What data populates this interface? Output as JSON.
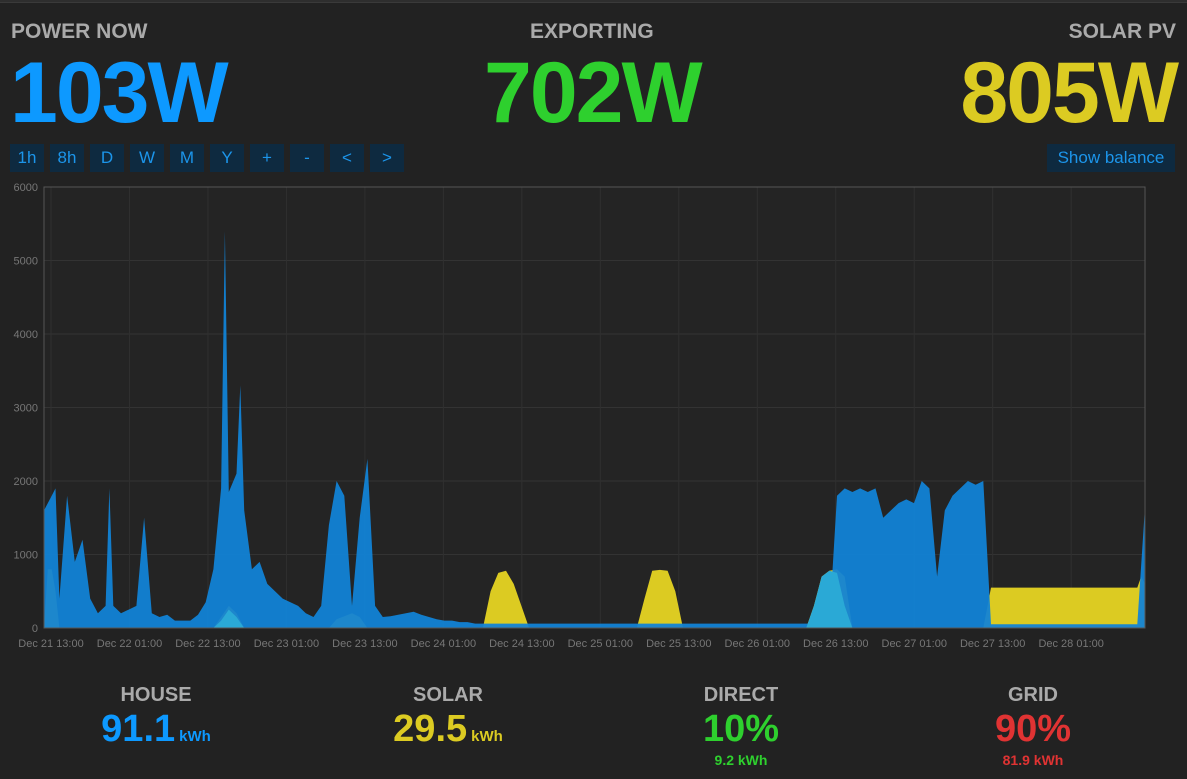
{
  "header": {
    "power_now": {
      "label": "POWER NOW",
      "value": "103W",
      "color": "#0d99ff"
    },
    "exporting": {
      "label": "EXPORTING",
      "value": "702W",
      "color": "#2ed02e"
    },
    "solar_pv": {
      "label": "SOLAR PV",
      "value": "805W",
      "color": "#dccb22"
    }
  },
  "toolbar": {
    "buttons": [
      "1h",
      "8h",
      "D",
      "W",
      "M",
      "Y",
      "+",
      "-",
      "<",
      ">"
    ],
    "show_balance": "Show balance"
  },
  "chart_data": {
    "type": "area",
    "y_ticks": [
      "0",
      "1000",
      "2000",
      "3000",
      "4000",
      "5000",
      "6000"
    ],
    "ylim": [
      0,
      6000
    ],
    "x_ticks": [
      "Dec 21 13:00",
      "Dec 22 01:00",
      "Dec 22 13:00",
      "Dec 23 01:00",
      "Dec 23 13:00",
      "Dec 24 01:00",
      "Dec 24 13:00",
      "Dec 25 01:00",
      "Dec 25 13:00",
      "Dec 26 01:00",
      "Dec 26 13:00",
      "Dec 27 01:00",
      "Dec 27 13:00",
      "Dec 28 01:00"
    ],
    "grid": true,
    "series_colors": {
      "house": "#1283d6",
      "solar": "#dccb22",
      "direct": "#2aa9d6"
    },
    "house": [
      [
        0,
        1600
      ],
      [
        1,
        1800
      ],
      [
        1.5,
        1900
      ],
      [
        2,
        400
      ],
      [
        3,
        1800
      ],
      [
        4,
        900
      ],
      [
        5,
        1200
      ],
      [
        6,
        400
      ],
      [
        7,
        200
      ],
      [
        8,
        300
      ],
      [
        8.5,
        1900
      ],
      [
        9,
        300
      ],
      [
        10,
        200
      ],
      [
        11,
        250
      ],
      [
        12,
        300
      ],
      [
        13,
        1500
      ],
      [
        14,
        200
      ],
      [
        15,
        150
      ],
      [
        16,
        180
      ],
      [
        17,
        100
      ],
      [
        18,
        100
      ],
      [
        19,
        100
      ],
      [
        20,
        180
      ],
      [
        21,
        350
      ],
      [
        22,
        800
      ],
      [
        23,
        1900
      ],
      [
        23.5,
        5400
      ],
      [
        24,
        1850
      ],
      [
        25,
        2100
      ],
      [
        25.5,
        3300
      ],
      [
        26,
        1600
      ],
      [
        27,
        800
      ],
      [
        28,
        900
      ],
      [
        29,
        600
      ],
      [
        30,
        500
      ],
      [
        31,
        400
      ],
      [
        32,
        350
      ],
      [
        33,
        300
      ],
      [
        34,
        200
      ],
      [
        35,
        150
      ],
      [
        36,
        300
      ],
      [
        37,
        1400
      ],
      [
        38,
        2000
      ],
      [
        39,
        1800
      ],
      [
        40,
        300
      ],
      [
        41,
        1500
      ],
      [
        42,
        2300
      ],
      [
        43,
        300
      ],
      [
        44,
        150
      ],
      [
        45,
        160
      ],
      [
        46,
        180
      ],
      [
        47,
        200
      ],
      [
        48,
        220
      ],
      [
        49,
        180
      ],
      [
        50,
        150
      ],
      [
        51,
        120
      ],
      [
        52,
        100
      ],
      [
        53,
        100
      ],
      [
        54,
        80
      ],
      [
        55,
        80
      ],
      [
        56,
        60
      ],
      [
        57,
        60
      ],
      [
        58,
        60
      ],
      [
        59,
        60
      ],
      [
        60,
        60
      ],
      [
        61,
        60
      ],
      [
        62,
        60
      ],
      [
        63,
        60
      ],
      [
        64,
        60
      ],
      [
        65,
        60
      ],
      [
        66,
        60
      ],
      [
        67,
        60
      ],
      [
        68,
        60
      ],
      [
        69,
        60
      ],
      [
        70,
        60
      ],
      [
        71,
        60
      ],
      [
        72,
        60
      ],
      [
        73,
        60
      ],
      [
        74,
        60
      ],
      [
        75,
        60
      ],
      [
        76,
        60
      ],
      [
        77,
        60
      ],
      [
        78,
        60
      ],
      [
        79,
        60
      ],
      [
        80,
        60
      ],
      [
        81,
        60
      ],
      [
        82,
        60
      ],
      [
        83,
        60
      ],
      [
        84,
        60
      ],
      [
        85,
        60
      ],
      [
        86,
        60
      ],
      [
        87,
        60
      ],
      [
        88,
        60
      ],
      [
        89,
        60
      ],
      [
        90,
        60
      ],
      [
        91,
        60
      ],
      [
        92,
        60
      ],
      [
        93,
        60
      ],
      [
        94,
        60
      ],
      [
        95,
        60
      ],
      [
        96,
        60
      ],
      [
        97,
        60
      ],
      [
        98,
        60
      ],
      [
        99,
        60
      ],
      [
        100,
        60
      ],
      [
        101,
        60
      ],
      [
        102,
        60
      ],
      [
        103,
        1800
      ],
      [
        104,
        1900
      ],
      [
        105,
        1850
      ],
      [
        106,
        1900
      ],
      [
        107,
        1850
      ],
      [
        108,
        1900
      ],
      [
        109,
        1500
      ],
      [
        110,
        1600
      ],
      [
        111,
        1700
      ],
      [
        112,
        1750
      ],
      [
        113,
        1700
      ],
      [
        114,
        2000
      ],
      [
        115,
        1900
      ],
      [
        116,
        700
      ],
      [
        117,
        1600
      ],
      [
        118,
        1800
      ],
      [
        119,
        1900
      ],
      [
        120,
        2000
      ],
      [
        121,
        1950
      ],
      [
        122,
        2000
      ],
      [
        123,
        50
      ],
      [
        124,
        50
      ],
      [
        125,
        50
      ],
      [
        126,
        50
      ],
      [
        127,
        50
      ],
      [
        128,
        50
      ],
      [
        129,
        50
      ],
      [
        130,
        50
      ],
      [
        131,
        50
      ],
      [
        132,
        50
      ],
      [
        133,
        50
      ],
      [
        134,
        50
      ],
      [
        135,
        50
      ],
      [
        136,
        50
      ],
      [
        137,
        50
      ],
      [
        138,
        50
      ],
      [
        139,
        50
      ],
      [
        140,
        50
      ],
      [
        141,
        50
      ],
      [
        142,
        50
      ],
      [
        143,
        1650
      ]
    ],
    "solar": [
      [
        0,
        0
      ],
      [
        0.5,
        800
      ],
      [
        1,
        800
      ],
      [
        1.5,
        500
      ],
      [
        2,
        0
      ],
      [
        22,
        0
      ],
      [
        23,
        150
      ],
      [
        24,
        300
      ],
      [
        25,
        200
      ],
      [
        26,
        0
      ],
      [
        37,
        0
      ],
      [
        38,
        120
      ],
      [
        40,
        200
      ],
      [
        41,
        150
      ],
      [
        42,
        0
      ],
      [
        57,
        0
      ],
      [
        58,
        500
      ],
      [
        59,
        750
      ],
      [
        60,
        780
      ],
      [
        61,
        600
      ],
      [
        62,
        300
      ],
      [
        63,
        0
      ],
      [
        77,
        0
      ],
      [
        78,
        400
      ],
      [
        79,
        780
      ],
      [
        80,
        790
      ],
      [
        81,
        780
      ],
      [
        82,
        500
      ],
      [
        83,
        0
      ],
      [
        99,
        0
      ],
      [
        100,
        300
      ],
      [
        101,
        700
      ],
      [
        102,
        780
      ],
      [
        103,
        800
      ],
      [
        104,
        700
      ],
      [
        105,
        0
      ],
      [
        122,
        0
      ],
      [
        123,
        550
      ],
      [
        142,
        550
      ],
      [
        142.5,
        700
      ],
      [
        143,
        600
      ]
    ],
    "direct": [
      [
        0,
        0
      ],
      [
        22,
        0
      ],
      [
        23,
        100
      ],
      [
        24,
        250
      ],
      [
        25,
        150
      ],
      [
        26,
        0
      ],
      [
        99,
        0
      ],
      [
        100,
        300
      ],
      [
        101,
        700
      ],
      [
        102,
        780
      ],
      [
        103,
        750
      ],
      [
        104,
        300
      ],
      [
        105,
        0
      ]
    ]
  },
  "summary": {
    "house": {
      "label": "HOUSE",
      "value": "91.1",
      "unit": "kWh",
      "color": "#0d99ff"
    },
    "solar": {
      "label": "SOLAR",
      "value": "29.5",
      "unit": "kWh",
      "color": "#dccb22"
    },
    "direct": {
      "label": "DIRECT",
      "value": "10%",
      "sub": "9.2 kWh",
      "color": "#2ed02e"
    },
    "grid": {
      "label": "GRID",
      "value": "90%",
      "sub": "81.9 kWh",
      "color": "#e03333"
    }
  }
}
